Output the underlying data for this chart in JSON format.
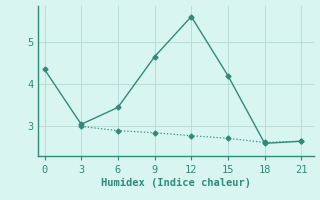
{
  "line1_x": [
    0,
    3,
    6,
    9,
    12,
    15,
    18,
    21
  ],
  "line1_y": [
    4.35,
    3.05,
    3.45,
    4.65,
    5.6,
    4.2,
    2.6,
    2.65
  ],
  "line2_x": [
    3,
    6,
    9,
    12,
    15,
    18,
    21
  ],
  "line2_y": [
    3.0,
    2.9,
    2.85,
    2.78,
    2.72,
    2.62,
    2.65
  ],
  "line_color": "#2e8b7a",
  "bg_color": "#d9f5f0",
  "grid_color": "#b8ddd8",
  "xlabel": "Humidex (Indice chaleur)",
  "xticks": [
    0,
    3,
    6,
    9,
    12,
    15,
    18,
    21
  ],
  "yticks": [
    3,
    4,
    5
  ],
  "xlim": [
    -0.5,
    22
  ],
  "ylim": [
    2.3,
    5.85
  ],
  "xlabel_fontsize": 7.5,
  "tick_fontsize": 7.5,
  "marker": "D",
  "marker_size": 2.5
}
